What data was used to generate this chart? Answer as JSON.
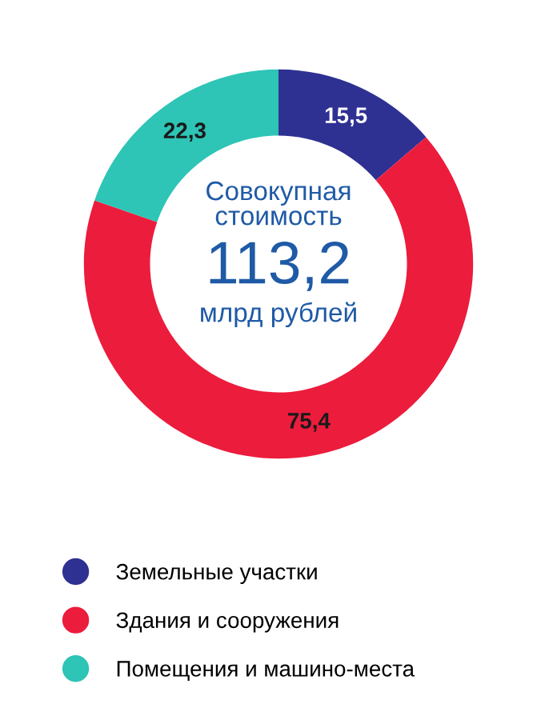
{
  "chart_data": {
    "type": "donut",
    "categories": [
      "Земельные участки",
      "Здания и сооружения",
      "Помещения и машино-места"
    ],
    "values": [
      15.5,
      75.4,
      22.3
    ],
    "value_labels": [
      "15,5",
      "75,4",
      "22,3"
    ],
    "colors": [
      "#2e3192",
      "#ec1c3c",
      "#2ec4b6"
    ],
    "annotations": [
      "Совокупная\nстоимость",
      "113,2",
      "млрд рублей"
    ],
    "legend": "bottom"
  }
}
